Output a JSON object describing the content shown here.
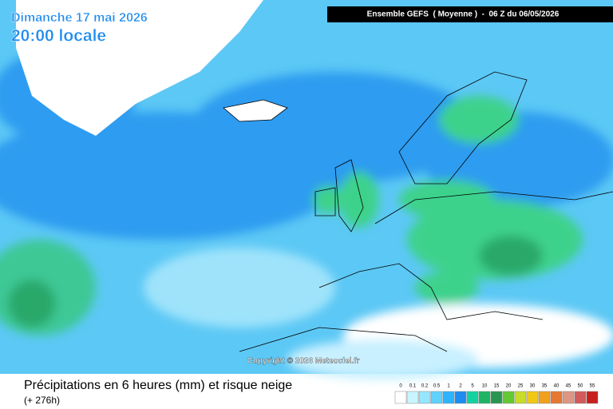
{
  "header": {
    "date": "Dimanche 17 mai 2026",
    "time": "20:00 locale",
    "model": "Ensemble GEFS  ( Moyenne )  -  06 Z du 06/05/2026"
  },
  "copyright": "Copyright © 2026 Meteociel.fr",
  "footer": {
    "title": "Précipitations en 6 heures (mm) et risque neige",
    "lead": "(+ 276h)"
  },
  "legend": {
    "values": [
      0,
      0.1,
      0.2,
      0.5,
      1,
      2,
      5,
      10,
      15,
      20,
      25,
      30,
      35,
      40,
      45,
      50,
      55
    ],
    "colors": [
      "#ffffff",
      "#c8f5ff",
      "#96e6ff",
      "#5fd2ff",
      "#2db4ff",
      "#1e8cf0",
      "#14d2a0",
      "#1eb464",
      "#289650",
      "#64c832",
      "#c8dc28",
      "#f0c814",
      "#f0a01e",
      "#e67832",
      "#dc9682",
      "#d25a5a",
      "#c81e1e"
    ]
  }
}
